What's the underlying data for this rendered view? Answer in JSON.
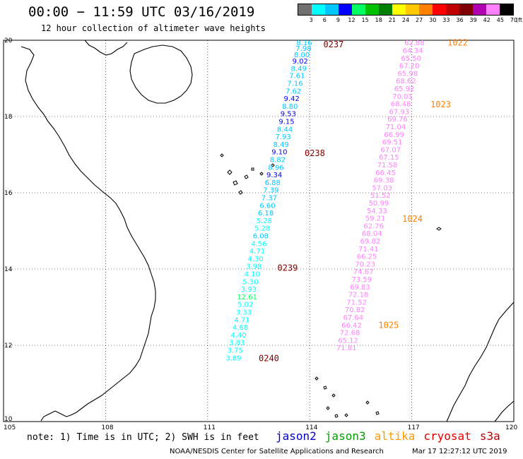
{
  "header": {
    "title": "00:00 − 11:59 UTC 03/16/2019",
    "subtitle": "12 hour collection of altimeter wave heights"
  },
  "legend": {
    "unit": "(ft)",
    "labels": [
      "3",
      "6",
      "9",
      "12",
      "15",
      "18",
      "21",
      "24",
      "27",
      "30",
      "33",
      "36",
      "39",
      "42",
      "45",
      "70"
    ],
    "colors": [
      "#707070",
      "#00ffff",
      "#00c8ff",
      "#0000ff",
      "#00ff60",
      "#00c000",
      "#008000",
      "#ffff00",
      "#ffc800",
      "#ff8000",
      "#ff0000",
      "#c00000",
      "#800000",
      "#b000b0",
      "#ff80ff",
      "#000000"
    ]
  },
  "map": {
    "lon_ticks": [
      "105",
      "108",
      "111",
      "114",
      "117",
      "120"
    ],
    "lat_ticks": [
      "20",
      "18",
      "16",
      "14",
      "12",
      "10"
    ],
    "lon_range": [
      105,
      120
    ],
    "lat_range": [
      10,
      20
    ],
    "grid": true
  },
  "tracks": [
    {
      "id": "left-track",
      "observations": [
        {
          "lat": 19.94,
          "lon": 113.84,
          "v": "8.16",
          "c": "#00c8ff"
        },
        {
          "lat": 19.8,
          "lon": 113.82,
          "v": "7.98",
          "c": "#00c8ff"
        },
        {
          "lat": 19.63,
          "lon": 113.77,
          "v": "8.00",
          "c": "#00c8ff"
        },
        {
          "lat": 19.46,
          "lon": 113.72,
          "v": "9.02",
          "c": "#0000ff"
        },
        {
          "lat": 19.27,
          "lon": 113.68,
          "v": "8.49",
          "c": "#00c8ff"
        },
        {
          "lat": 19.08,
          "lon": 113.63,
          "v": "7.61",
          "c": "#00c8ff"
        },
        {
          "lat": 18.88,
          "lon": 113.57,
          "v": "7.16",
          "c": "#00c8ff"
        },
        {
          "lat": 18.68,
          "lon": 113.52,
          "v": "7.62",
          "c": "#00c8ff"
        },
        {
          "lat": 18.48,
          "lon": 113.47,
          "v": "9.42",
          "c": "#0000ff"
        },
        {
          "lat": 18.28,
          "lon": 113.42,
          "v": "8.80",
          "c": "#00c8ff"
        },
        {
          "lat": 18.08,
          "lon": 113.37,
          "v": "9.53",
          "c": "#0000ff"
        },
        {
          "lat": 17.88,
          "lon": 113.32,
          "v": "9.15",
          "c": "#0000ff"
        },
        {
          "lat": 17.68,
          "lon": 113.27,
          "v": "8.44",
          "c": "#00c8ff"
        },
        {
          "lat": 17.48,
          "lon": 113.22,
          "v": "7.93",
          "c": "#00c8ff"
        },
        {
          "lat": 17.28,
          "lon": 113.16,
          "v": "8.49",
          "c": "#00c8ff"
        },
        {
          "lat": 17.08,
          "lon": 113.11,
          "v": "9.10",
          "c": "#0000ff"
        },
        {
          "lat": 16.88,
          "lon": 113.06,
          "v": "8.82",
          "c": "#00c8ff"
        },
        {
          "lat": 16.68,
          "lon": 113.01,
          "v": "8.96",
          "c": "#00c8ff"
        },
        {
          "lat": 16.48,
          "lon": 112.96,
          "v": "9.34",
          "c": "#0000ff"
        },
        {
          "lat": 16.28,
          "lon": 112.91,
          "v": "6.88",
          "c": "#00c8ff"
        },
        {
          "lat": 16.08,
          "lon": 112.86,
          "v": "7.39",
          "c": "#00c8ff"
        },
        {
          "lat": 15.88,
          "lon": 112.81,
          "v": "7.37",
          "c": "#00c8ff"
        },
        {
          "lat": 15.68,
          "lon": 112.76,
          "v": "6.60",
          "c": "#00c8ff"
        },
        {
          "lat": 15.48,
          "lon": 112.71,
          "v": "6.18",
          "c": "#00c8ff"
        },
        {
          "lat": 15.28,
          "lon": 112.66,
          "v": "5.28",
          "c": "#00ffff"
        },
        {
          "lat": 15.08,
          "lon": 112.61,
          "v": "5.28",
          "c": "#00ffff"
        },
        {
          "lat": 14.88,
          "lon": 112.56,
          "v": "6.08",
          "c": "#00c8ff"
        },
        {
          "lat": 14.68,
          "lon": 112.51,
          "v": "4.56",
          "c": "#00ffff"
        },
        {
          "lat": 14.48,
          "lon": 112.46,
          "v": "4.71",
          "c": "#00ffff"
        },
        {
          "lat": 14.28,
          "lon": 112.41,
          "v": "4.30",
          "c": "#00ffff"
        },
        {
          "lat": 14.08,
          "lon": 112.36,
          "v": "3.98",
          "c": "#00ffff"
        },
        {
          "lat": 13.88,
          "lon": 112.31,
          "v": "4.10",
          "c": "#00ffff"
        },
        {
          "lat": 13.68,
          "lon": 112.26,
          "v": "5.30",
          "c": "#00ffff"
        },
        {
          "lat": 13.48,
          "lon": 112.21,
          "v": "3.93",
          "c": "#00ffff"
        },
        {
          "lat": 13.28,
          "lon": 112.16,
          "v": "12.61",
          "c": "#00ff60"
        },
        {
          "lat": 13.08,
          "lon": 112.11,
          "v": "5.02",
          "c": "#00ffff"
        },
        {
          "lat": 12.88,
          "lon": 112.06,
          "v": "3.33",
          "c": "#00ffff"
        },
        {
          "lat": 12.68,
          "lon": 112.01,
          "v": "4.71",
          "c": "#00ffff"
        },
        {
          "lat": 12.48,
          "lon": 111.96,
          "v": "4.68",
          "c": "#00ffff"
        },
        {
          "lat": 12.28,
          "lon": 111.91,
          "v": "4.40",
          "c": "#00ffff"
        },
        {
          "lat": 12.08,
          "lon": 111.86,
          "v": "3.83",
          "c": "#00ffff"
        },
        {
          "lat": 11.88,
          "lon": 111.81,
          "v": "3.75",
          "c": "#00ffff"
        },
        {
          "lat": 11.68,
          "lon": 111.76,
          "v": "3.89",
          "c": "#00ffff"
        }
      ]
    },
    {
      "id": "right-track",
      "observations": [
        {
          "lat": 19.94,
          "lon": 117.08,
          "v": "62.88",
          "c": "#ff80ff"
        },
        {
          "lat": 19.74,
          "lon": 117.03,
          "v": "64.34",
          "c": "#ff80ff"
        },
        {
          "lat": 19.54,
          "lon": 116.98,
          "v": "65.50",
          "c": "#ff80ff"
        },
        {
          "lat": 19.34,
          "lon": 116.93,
          "v": "67.20",
          "c": "#ff80ff"
        },
        {
          "lat": 19.14,
          "lon": 116.88,
          "v": "65.98",
          "c": "#ff80ff"
        },
        {
          "lat": 18.94,
          "lon": 116.83,
          "v": "68.62",
          "c": "#ff80ff"
        },
        {
          "lat": 18.74,
          "lon": 116.78,
          "v": "65.92",
          "c": "#ff80ff"
        },
        {
          "lat": 18.54,
          "lon": 116.73,
          "v": "70.01",
          "c": "#ff80ff"
        },
        {
          "lat": 18.34,
          "lon": 116.68,
          "v": "68.48",
          "c": "#ff80ff"
        },
        {
          "lat": 18.14,
          "lon": 116.63,
          "v": "67.93",
          "c": "#ff80ff"
        },
        {
          "lat": 17.94,
          "lon": 116.58,
          "v": "69.76",
          "c": "#ff80ff"
        },
        {
          "lat": 17.74,
          "lon": 116.53,
          "v": "71.04",
          "c": "#ff80ff"
        },
        {
          "lat": 17.54,
          "lon": 116.48,
          "v": "66.99",
          "c": "#ff80ff"
        },
        {
          "lat": 17.34,
          "lon": 116.43,
          "v": "69.51",
          "c": "#ff80ff"
        },
        {
          "lat": 17.14,
          "lon": 116.38,
          "v": "67.07",
          "c": "#ff80ff"
        },
        {
          "lat": 16.94,
          "lon": 116.33,
          "v": "67.15",
          "c": "#ff80ff"
        },
        {
          "lat": 16.74,
          "lon": 116.28,
          "v": "71.58",
          "c": "#ff80ff"
        },
        {
          "lat": 16.54,
          "lon": 116.23,
          "v": "66.45",
          "c": "#ff80ff"
        },
        {
          "lat": 16.34,
          "lon": 116.18,
          "v": "69.38",
          "c": "#ff80ff"
        },
        {
          "lat": 16.14,
          "lon": 116.13,
          "v": "57.03",
          "c": "#ff80ff"
        },
        {
          "lat": 15.94,
          "lon": 116.08,
          "v": "51.52",
          "c": "#ff80ff"
        },
        {
          "lat": 15.74,
          "lon": 116.03,
          "v": "50.99",
          "c": "#ff80ff"
        },
        {
          "lat": 15.54,
          "lon": 115.98,
          "v": "54.33",
          "c": "#ff80ff"
        },
        {
          "lat": 15.34,
          "lon": 115.93,
          "v": "59.21",
          "c": "#ff80ff"
        },
        {
          "lat": 15.14,
          "lon": 115.88,
          "v": "62.76",
          "c": "#ff80ff"
        },
        {
          "lat": 14.94,
          "lon": 115.83,
          "v": "68.04",
          "c": "#ff80ff"
        },
        {
          "lat": 14.74,
          "lon": 115.78,
          "v": "69.82",
          "c": "#ff80ff"
        },
        {
          "lat": 14.54,
          "lon": 115.73,
          "v": "71.41",
          "c": "#ff80ff"
        },
        {
          "lat": 14.34,
          "lon": 115.68,
          "v": "66.25",
          "c": "#ff80ff"
        },
        {
          "lat": 14.14,
          "lon": 115.63,
          "v": "70.23",
          "c": "#ff80ff"
        },
        {
          "lat": 13.94,
          "lon": 115.58,
          "v": "74.67",
          "c": "#ff80ff"
        },
        {
          "lat": 13.74,
          "lon": 115.53,
          "v": "73.59",
          "c": "#ff80ff"
        },
        {
          "lat": 13.54,
          "lon": 115.48,
          "v": "69.83",
          "c": "#ff80ff"
        },
        {
          "lat": 13.34,
          "lon": 115.43,
          "v": "72.18",
          "c": "#ff80ff"
        },
        {
          "lat": 13.14,
          "lon": 115.38,
          "v": "71.52",
          "c": "#ff80ff"
        },
        {
          "lat": 12.94,
          "lon": 115.33,
          "v": "70.82",
          "c": "#ff80ff"
        },
        {
          "lat": 12.74,
          "lon": 115.28,
          "v": "67.64",
          "c": "#ff80ff"
        },
        {
          "lat": 12.54,
          "lon": 115.23,
          "v": "66.42",
          "c": "#ff80ff"
        },
        {
          "lat": 12.34,
          "lon": 115.18,
          "v": "72.68",
          "c": "#ff80ff"
        },
        {
          "lat": 12.14,
          "lon": 115.13,
          "v": "65.12",
          "c": "#ff80ff"
        },
        {
          "lat": 11.94,
          "lon": 115.08,
          "v": "71.81",
          "c": "#ff80ff"
        }
      ]
    }
  ],
  "time_labels": [
    {
      "lat": 19.91,
      "lon": 114.4,
      "text": "0237",
      "c": "#800000"
    },
    {
      "lat": 17.06,
      "lon": 113.85,
      "text": "0238",
      "c": "#800000"
    },
    {
      "lat": 14.05,
      "lon": 113.05,
      "text": "0239",
      "c": "#800000"
    },
    {
      "lat": 11.68,
      "lon": 112.5,
      "text": "0240",
      "c": "#800000"
    },
    {
      "lat": 19.95,
      "lon": 118.05,
      "text": "1022",
      "c": "#ff8000"
    },
    {
      "lat": 18.33,
      "lon": 117.55,
      "text": "1023",
      "c": "#ff8000"
    },
    {
      "lat": 15.33,
      "lon": 116.72,
      "text": "1024",
      "c": "#ff8000"
    },
    {
      "lat": 12.55,
      "lon": 116.02,
      "text": "1025",
      "c": "#ff8000"
    }
  ],
  "footer": {
    "note": "note: 1) Time is in UTC; 2) SWH is in feet",
    "satellites": [
      {
        "name": "jason2",
        "color": "#0000c8"
      },
      {
        "name": "jason3",
        "color": "#00a000"
      },
      {
        "name": "altika",
        "color": "#ff9900"
      },
      {
        "name": "cryosat",
        "color": "#e00000"
      },
      {
        "name": "s3a",
        "color": "#c00000"
      }
    ],
    "credit": "NOAA/NESDIS Center for Satellite Applications and Research",
    "timestamp": "Mar 17 12:27:12 UTC 2019"
  }
}
